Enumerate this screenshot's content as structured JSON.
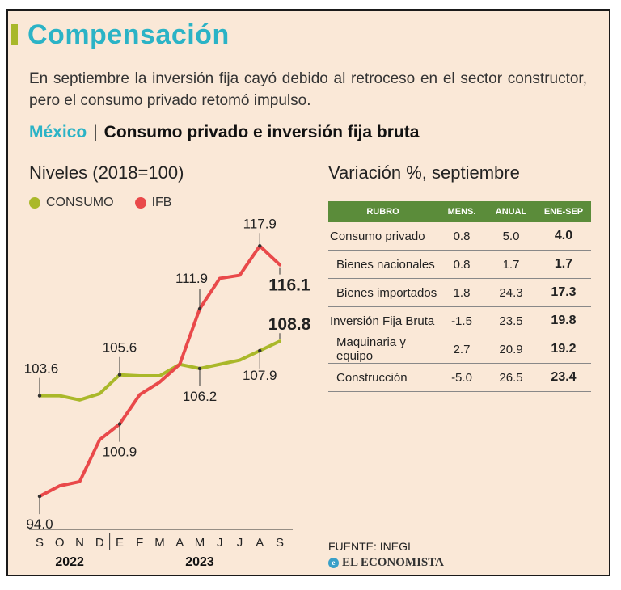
{
  "header": {
    "title": "Compensación",
    "subtitle": "En septiembre la inversión fija cayó debido al retroceso en el sector constructor, pero el consumo privado retomó impulso.",
    "country": "México",
    "section_title": "Consumo privado e inversión fija bruta"
  },
  "colors": {
    "consumo": "#aab82a",
    "ifb": "#e9494a",
    "accent": "#2bb3c6",
    "table_header": "#5b8c3a"
  },
  "chart_data": {
    "type": "line",
    "title": "Niveles (2018=100)",
    "categories": [
      "S",
      "O",
      "N",
      "D",
      "E",
      "F",
      "M",
      "A",
      "M",
      "J",
      "J",
      "A",
      "S"
    ],
    "years": [
      {
        "label": "2022",
        "start": 0,
        "end": 3
      },
      {
        "label": "2023",
        "start": 4,
        "end": 12
      }
    ],
    "series": [
      {
        "name": "CONSUMO",
        "values": [
          103.6,
          103.6,
          103.2,
          103.8,
          105.6,
          105.5,
          105.5,
          106.6,
          106.2,
          106.6,
          107.0,
          107.9,
          108.8
        ]
      },
      {
        "name": "IFB",
        "values": [
          94.0,
          95.0,
          95.4,
          99.4,
          100.9,
          103.7,
          104.9,
          106.6,
          111.9,
          114.8,
          115.1,
          117.9,
          116.1
        ]
      }
    ],
    "annotations": [
      {
        "series": 0,
        "index": 0,
        "text": "103.6",
        "bold": false
      },
      {
        "series": 0,
        "index": 4,
        "text": "105.6",
        "bold": false
      },
      {
        "series": 0,
        "index": 8,
        "text": "106.2",
        "bold": false
      },
      {
        "series": 0,
        "index": 11,
        "text": "107.9",
        "bold": false
      },
      {
        "series": 0,
        "index": 12,
        "text": "108.8",
        "bold": true
      },
      {
        "series": 1,
        "index": 0,
        "text": "94.0",
        "bold": false
      },
      {
        "series": 1,
        "index": 4,
        "text": "100.9",
        "bold": false
      },
      {
        "series": 1,
        "index": 8,
        "text": "111.9",
        "bold": false
      },
      {
        "series": 1,
        "index": 11,
        "text": "117.9",
        "bold": false
      },
      {
        "series": 1,
        "index": 12,
        "text": "116.1",
        "bold": true
      }
    ],
    "ylim": [
      92,
      119
    ],
    "grid": false
  },
  "table": {
    "title": "Variación %, septiembre",
    "headers": [
      "RUBRO",
      "MENS.",
      "ANUAL",
      "ENE-SEP"
    ],
    "rows": [
      {
        "rubro": "Consumo privado",
        "mens": "0.8",
        "anual": "5.0",
        "enesep": "4.0"
      },
      {
        "rubro": "Bienes nacionales",
        "mens": "0.8",
        "anual": "1.7",
        "enesep": "1.7"
      },
      {
        "rubro": "Bienes importados",
        "mens": "1.8",
        "anual": "24.3",
        "enesep": "17.3"
      },
      {
        "rubro": "Inversión Fija Bruta",
        "mens": "-1.5",
        "anual": "23.5",
        "enesep": "19.8"
      },
      {
        "rubro": "Maquinaria y equipo",
        "mens": "2.7",
        "anual": "20.9",
        "enesep": "19.2"
      },
      {
        "rubro": "Construcción",
        "mens": "-5.0",
        "anual": "26.5",
        "enesep": "23.4"
      }
    ]
  },
  "footer": {
    "source": "FUENTE: INEGI",
    "brand": "EL ECONOMISTA",
    "brand_mark": "e"
  }
}
